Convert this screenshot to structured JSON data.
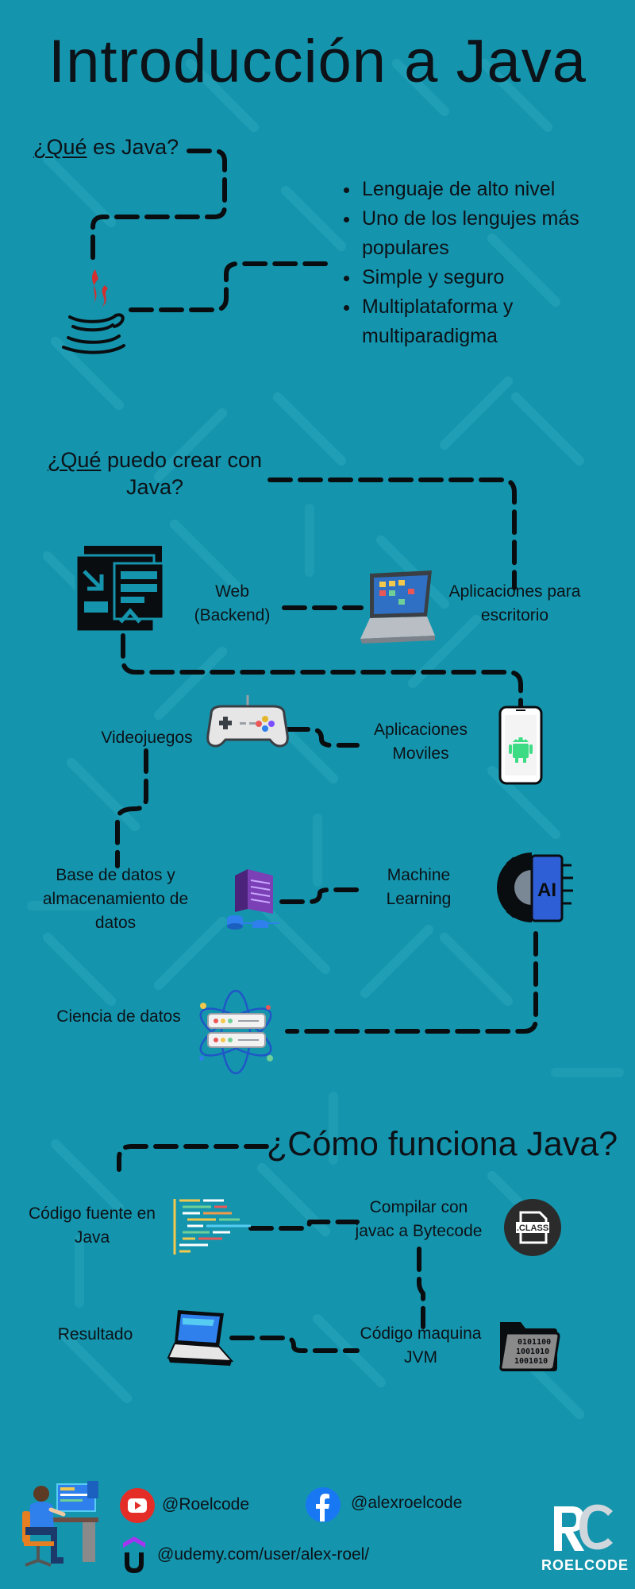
{
  "title": "Introducción a Java",
  "what_is": {
    "heading_underlined": "¿Qué",
    "heading_rest": " es Java?",
    "bullets": [
      "Lenguaje de alto nivel",
      "Uno de los lengujes más populares",
      "Simple y seguro",
      "Multiplataforma y multiparadigma"
    ],
    "icon": "java-logo-icon"
  },
  "what_create": {
    "heading_underlined": "¿Qué",
    "heading_rest": " puedo crear con Java?",
    "items": {
      "web": "Web (Backend)",
      "desktop": "Aplicaciones para escritorio",
      "games": "Videojuegos",
      "mobile": "Aplicaciones Moviles",
      "databases": "Base de datos y almacenamiento de datos",
      "ml": "Machine Learning",
      "data_science": "Ciencia de datos"
    },
    "ai_badge": "AI"
  },
  "how": {
    "heading": "¿Cómo funciona Java?",
    "steps": {
      "source": "Código fuente en Java",
      "compile": "Compilar con javac a Bytecode",
      "jvm": "Código maquina JVM",
      "result": "Resultado"
    },
    "class_badge": ".CLASS",
    "binary_text": [
      "0101100",
      "1001010",
      "1001010"
    ]
  },
  "footer": {
    "youtube": "@Roelcode",
    "facebook": "@alexroelcode",
    "udemy": "@udemy.com/user/alex-roel/",
    "brand": "ROELCODE",
    "logo_letters": "RC"
  },
  "colors": {
    "background": "#1595ad",
    "text": "#0c1218",
    "youtube": "#e52d27",
    "facebook": "#1877f2",
    "udemy": "#a435f0"
  }
}
